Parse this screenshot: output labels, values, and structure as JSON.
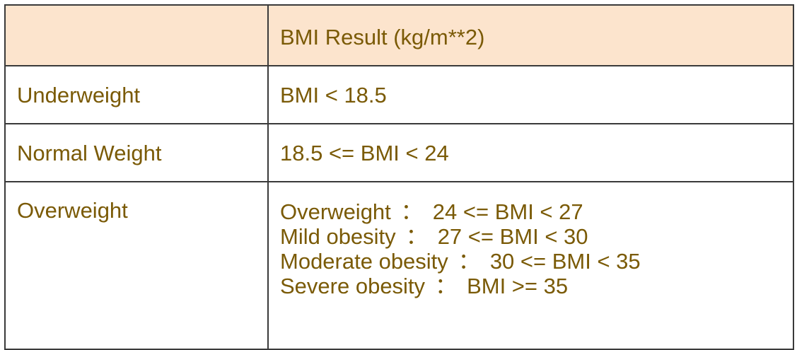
{
  "table": {
    "header": {
      "category": "",
      "result": "BMI Result (kg/m**2)"
    },
    "rows": [
      {
        "category": "Underweight",
        "result": "BMI < 18.5"
      },
      {
        "category": "Normal Weight",
        "result": "18.5 <= BMI < 24"
      },
      {
        "category": "Overweight",
        "sub_ranges": [
          {
            "label": "Overweight",
            "sep": "：",
            "range": "24 <= BMI < 27"
          },
          {
            "label": "Mild obesity",
            "sep": "：",
            "range": "27 <= BMI < 30"
          },
          {
            "label": "Moderate obesity",
            "sep": "：",
            "range": "30 <= BMI < 35"
          },
          {
            "label": "Severe obesity",
            "sep": "：",
            "range": "BMI >= 35"
          }
        ]
      }
    ]
  },
  "colors": {
    "text": "#7a5a06",
    "header_background": "#fce4cd",
    "border": "#3a3a3a"
  }
}
